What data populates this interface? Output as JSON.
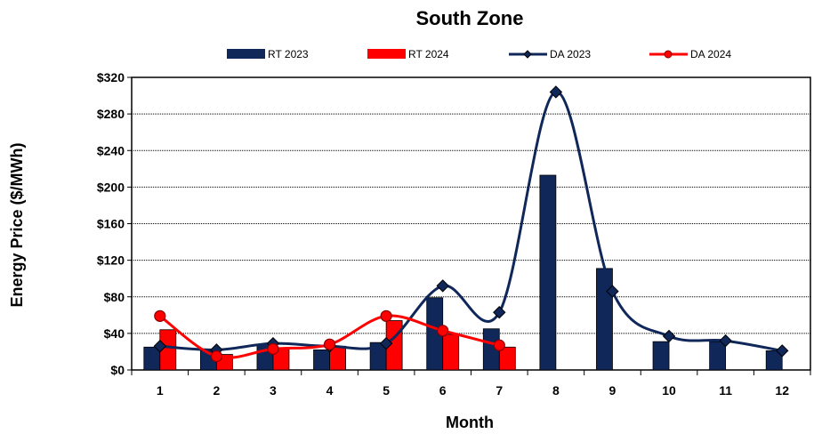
{
  "chart_data": {
    "type": "bar",
    "title": "South Zone",
    "xlabel": "Month",
    "ylabel": "Energy Price ($/MWh)",
    "categories": [
      "1",
      "2",
      "3",
      "4",
      "5",
      "6",
      "7",
      "8",
      "9",
      "10",
      "11",
      "12"
    ],
    "y_tick_labels": [
      "$0",
      "$40",
      "$80",
      "$120",
      "$160",
      "$200",
      "$240",
      "$280",
      "$320"
    ],
    "y_ticks": [
      0,
      40,
      80,
      120,
      160,
      200,
      240,
      280,
      320
    ],
    "ylim": [
      0,
      320
    ],
    "grid": true,
    "legend_position": "top",
    "series": [
      {
        "name": "RT 2023",
        "kind": "bar",
        "color": "#10275A",
        "values": [
          25,
          21,
          28,
          22,
          30,
          79,
          45,
          213,
          111,
          31,
          31,
          21
        ]
      },
      {
        "name": "RT 2024",
        "kind": "bar",
        "color": "#FF0000",
        "values": [
          44,
          17,
          23,
          26,
          54,
          39,
          25,
          null,
          null,
          null,
          null,
          null
        ]
      },
      {
        "name": "DA 2023",
        "kind": "line",
        "marker": "diamond",
        "color": "#10275A",
        "values": [
          26,
          22,
          29,
          26,
          29,
          92,
          63,
          304,
          86,
          37,
          32,
          21
        ]
      },
      {
        "name": "DA 2024",
        "kind": "line",
        "marker": "circle",
        "color": "#FF0000",
        "values": [
          59,
          15,
          23,
          28,
          59,
          43,
          27,
          null,
          null,
          null,
          null,
          null
        ]
      }
    ]
  }
}
